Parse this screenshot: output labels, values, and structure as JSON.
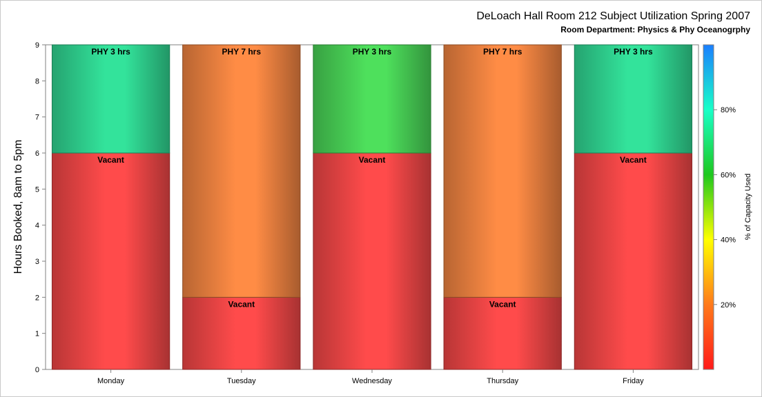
{
  "chart_data": {
    "type": "bar",
    "stacked": true,
    "title": "DeLoach Hall Room 212 Subject Utilization Spring 2007",
    "subtitle": "Room Department:  Physics & Phy Oceanogrphy",
    "ylabel": "Hours Booked, 8am to 5pm",
    "xlabel": "",
    "ylim": [
      0,
      9
    ],
    "yticks": [
      "0",
      "1",
      "2",
      "3",
      "4",
      "5",
      "6",
      "7",
      "8",
      "9"
    ],
    "categories": [
      "Monday",
      "Tuesday",
      "Wednesday",
      "Thursday",
      "Friday"
    ],
    "bars": [
      {
        "category": "Monday",
        "segments": [
          {
            "label": "Vacant",
            "value": 6,
            "color": "#ff4b4b"
          },
          {
            "label": "PHY 3 hrs",
            "value": 3,
            "color": "#33e39b"
          }
        ]
      },
      {
        "category": "Tuesday",
        "segments": [
          {
            "label": "Vacant",
            "value": 2,
            "color": "#ff4b4b"
          },
          {
            "label": "PHY 7 hrs",
            "value": 7,
            "color": "#ff8c45"
          }
        ]
      },
      {
        "category": "Wednesday",
        "segments": [
          {
            "label": "Vacant",
            "value": 6,
            "color": "#ff4b4b"
          },
          {
            "label": "PHY 3 hrs",
            "value": 3,
            "color": "#4ee05c"
          }
        ]
      },
      {
        "category": "Thursday",
        "segments": [
          {
            "label": "Vacant",
            "value": 2,
            "color": "#ff4b4b"
          },
          {
            "label": "PHY 7 hrs",
            "value": 7,
            "color": "#ff8c45"
          }
        ]
      },
      {
        "category": "Friday",
        "segments": [
          {
            "label": "Vacant",
            "value": 6,
            "color": "#ff4b4b"
          },
          {
            "label": "PHY 3 hrs",
            "value": 3,
            "color": "#33e39b"
          }
        ]
      }
    ],
    "colorbar": {
      "label": "% of Capacity Used",
      "range": [
        0,
        100
      ],
      "ticks": [
        {
          "value": 20,
          "label": "20%"
        },
        {
          "value": 40,
          "label": "40%"
        },
        {
          "value": 60,
          "label": "60%"
        },
        {
          "value": 80,
          "label": "80%"
        }
      ],
      "colors": [
        "#ff1a1a",
        "#ff7a1a",
        "#ffff00",
        "#1ec81e",
        "#19ffc8",
        "#1a7fff"
      ]
    },
    "grid": false,
    "legend": "colorbar-right"
  }
}
